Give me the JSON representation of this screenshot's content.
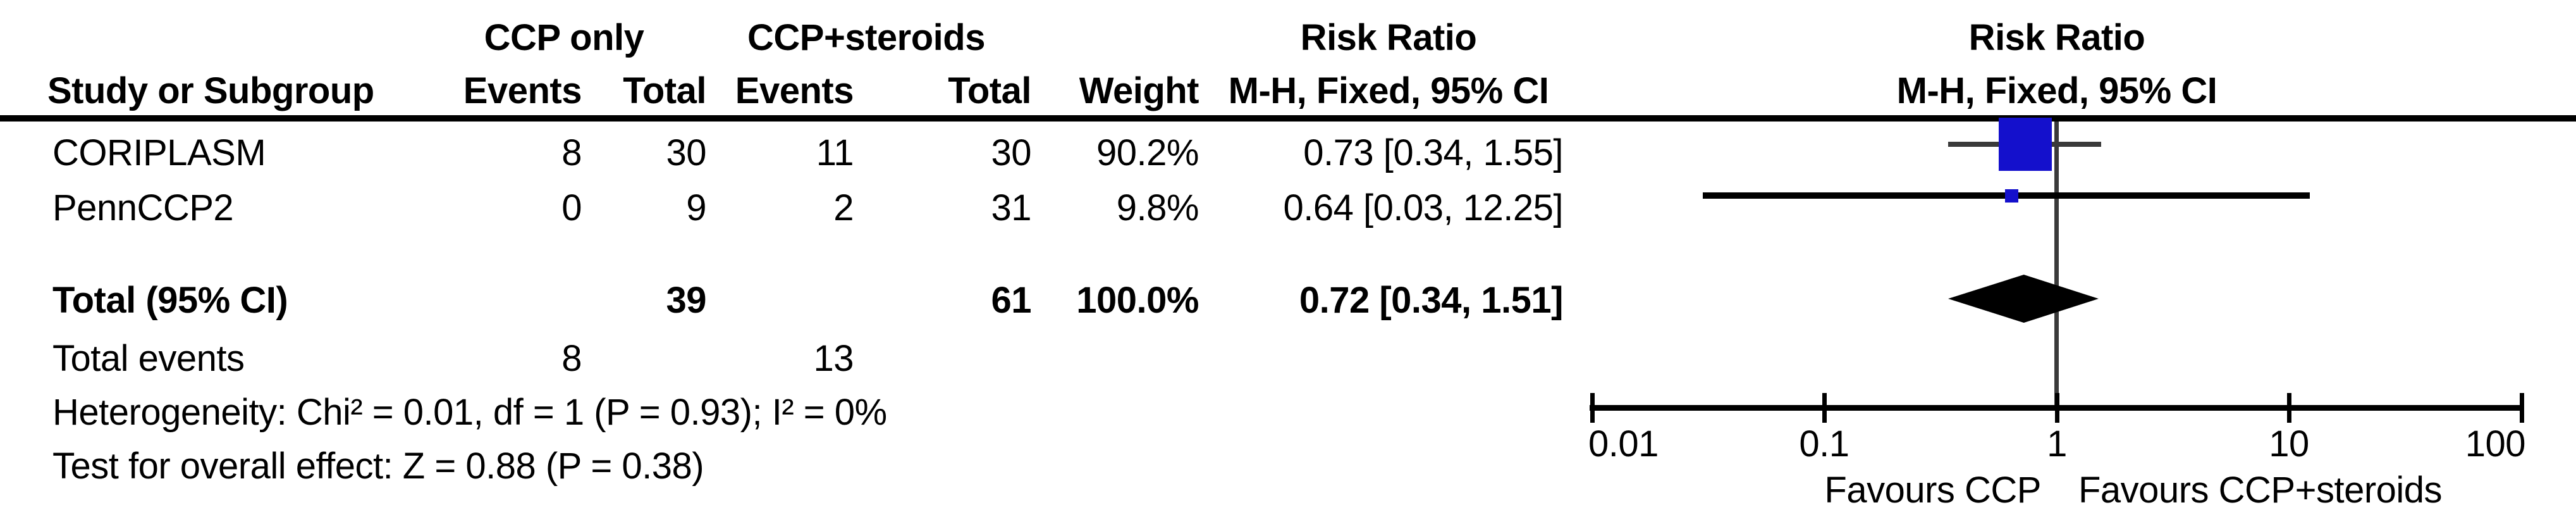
{
  "header": {
    "group1": "CCP only",
    "group2": "CCP+steroids",
    "risk_ratio_col": "Risk Ratio",
    "risk_ratio_plot": "Risk Ratio",
    "study": "Study or Subgroup",
    "events1": "Events",
    "total1": "Total",
    "events2": "Events",
    "total2": "Total",
    "weight": "Weight",
    "method_col": "M-H, Fixed, 95% CI",
    "method_plot": "M-H, Fixed, 95% CI"
  },
  "rows": [
    {
      "study": "CORIPLASM",
      "events1": "8",
      "total1": "30",
      "events2": "11",
      "total2": "30",
      "weight": "90.2%",
      "rr_ci": "0.73 [0.34, 1.55]"
    },
    {
      "study": "PennCCP2",
      "events1": "0",
      "total1": "9",
      "events2": "2",
      "total2": "31",
      "weight": "9.8%",
      "rr_ci": "0.64 [0.03, 12.25]"
    }
  ],
  "total_row": {
    "label": "Total (95% CI)",
    "total1": "39",
    "total2": "61",
    "weight": "100.0%",
    "rr_ci": "0.72 [0.34, 1.51]"
  },
  "total_events": {
    "label": "Total events",
    "events1": "8",
    "events2": "13"
  },
  "heterogeneity_text": "Heterogeneity: Chi² = 0.01, df = 1 (P = 0.93); I² = 0%",
  "overall_effect_text": "Test for overall effect: Z = 0.88 (P = 0.38)",
  "axis": {
    "tick_001": "0.01",
    "tick_01": "0.1",
    "tick_1": "1",
    "tick_10": "10",
    "tick_100": "100",
    "favours_left": "Favours CCP",
    "favours_right": "Favours CCP+steroids"
  },
  "colors": {
    "marker_blue": "#1410CC",
    "line_dark": "#3A3A3A",
    "diamond_black": "#000000"
  },
  "chart_data": {
    "type": "forest",
    "effect_measure": "Risk Ratio",
    "method": "M-H, Fixed, 95% CI",
    "x_scale": "log10",
    "x_ticks": [
      0.01,
      0.1,
      1,
      10,
      100
    ],
    "xlim": [
      0.01,
      100
    ],
    "groups": [
      "CCP only",
      "CCP+steroids"
    ],
    "studies": [
      {
        "name": "CORIPLASM",
        "events_ccp_only": 8,
        "total_ccp_only": 30,
        "events_ccp_steroids": 11,
        "total_ccp_steroids": 30,
        "weight_pct": 90.2,
        "rr": 0.73,
        "ci_low": 0.34,
        "ci_high": 1.55
      },
      {
        "name": "PennCCP2",
        "events_ccp_only": 0,
        "total_ccp_only": 9,
        "events_ccp_steroids": 2,
        "total_ccp_steroids": 31,
        "weight_pct": 9.8,
        "rr": 0.64,
        "ci_low": 0.03,
        "ci_high": 12.25
      }
    ],
    "total": {
      "total_ccp_only": 39,
      "total_ccp_steroids": 61,
      "weight_pct": 100.0,
      "rr": 0.72,
      "ci_low": 0.34,
      "ci_high": 1.51,
      "total_events_ccp_only": 8,
      "total_events_ccp_steroids": 13
    },
    "heterogeneity": {
      "chi2": 0.01,
      "df": 1,
      "p": 0.93,
      "i2_pct": 0
    },
    "overall_effect": {
      "z": 0.88,
      "p": 0.38
    },
    "favours": [
      "Favours CCP",
      "Favours CCP+steroids"
    ],
    "legend_position": "none",
    "grid": false
  }
}
